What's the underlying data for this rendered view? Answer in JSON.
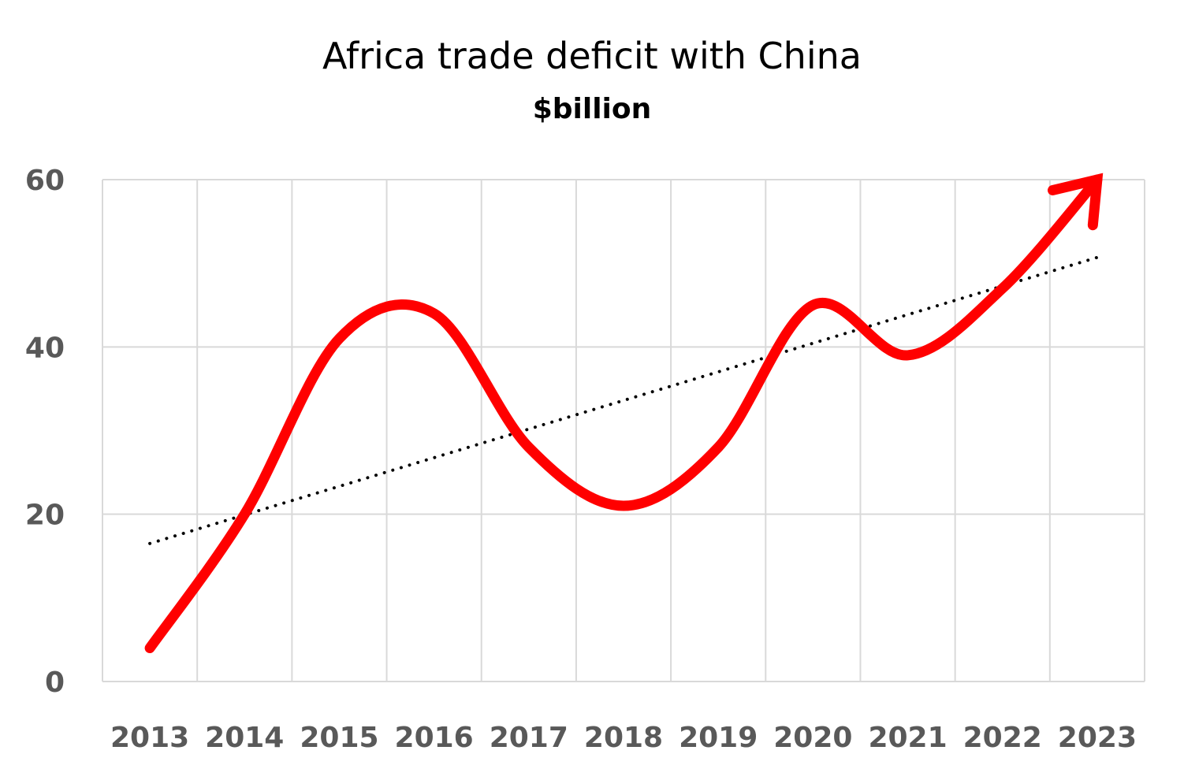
{
  "chart_data": {
    "type": "line",
    "title": "Africa trade deficit with China",
    "subtitle": "$billion",
    "xlabel": "",
    "ylabel": "",
    "categories": [
      "2013",
      "2014",
      "2015",
      "2016",
      "2017",
      "2018",
      "2019",
      "2020",
      "2021",
      "2022",
      "2023"
    ],
    "series": [
      {
        "values": [
          4,
          20,
          41,
          44,
          28,
          21,
          28,
          45,
          39,
          47,
          60
        ],
        "color": "#ff0000",
        "arrow_end": true
      }
    ],
    "trendline": {
      "style": "dotted",
      "color": "#000000",
      "start": 16.5,
      "end": 50.7
    },
    "yticks": [
      0,
      20,
      40,
      60
    ],
    "ylim": [
      0,
      60
    ],
    "grid": true,
    "legend": "none"
  }
}
